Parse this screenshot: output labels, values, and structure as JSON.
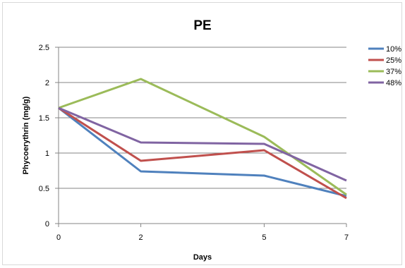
{
  "chart_data": {
    "type": "line",
    "title": "PE",
    "xlabel": "Days",
    "ylabel": "Phycoerythrin (mg/g)",
    "x": [
      0,
      2,
      5,
      7
    ],
    "x_tick_labels": [
      "0",
      "2",
      "5",
      "7"
    ],
    "ylim": [
      0,
      2.5
    ],
    "y_ticks": [
      0,
      0.5,
      1,
      1.5,
      2,
      2.5
    ],
    "y_tick_labels": [
      "0",
      "0.5",
      "1",
      "1.5",
      "2",
      "2.5"
    ],
    "grid": "horizontal",
    "legend": "right",
    "series": [
      {
        "name": "10%",
        "color": "#4f81bd",
        "values": [
          1.64,
          0.74,
          0.68,
          0.39
        ]
      },
      {
        "name": "25%",
        "color": "#c0504d",
        "values": [
          1.64,
          0.89,
          1.04,
          0.36
        ]
      },
      {
        "name": "37%",
        "color": "#9bbb59",
        "values": [
          1.64,
          2.05,
          1.23,
          0.41
        ]
      },
      {
        "name": "48%",
        "color": "#8064a2",
        "values": [
          1.64,
          1.15,
          1.13,
          0.61
        ]
      }
    ]
  }
}
